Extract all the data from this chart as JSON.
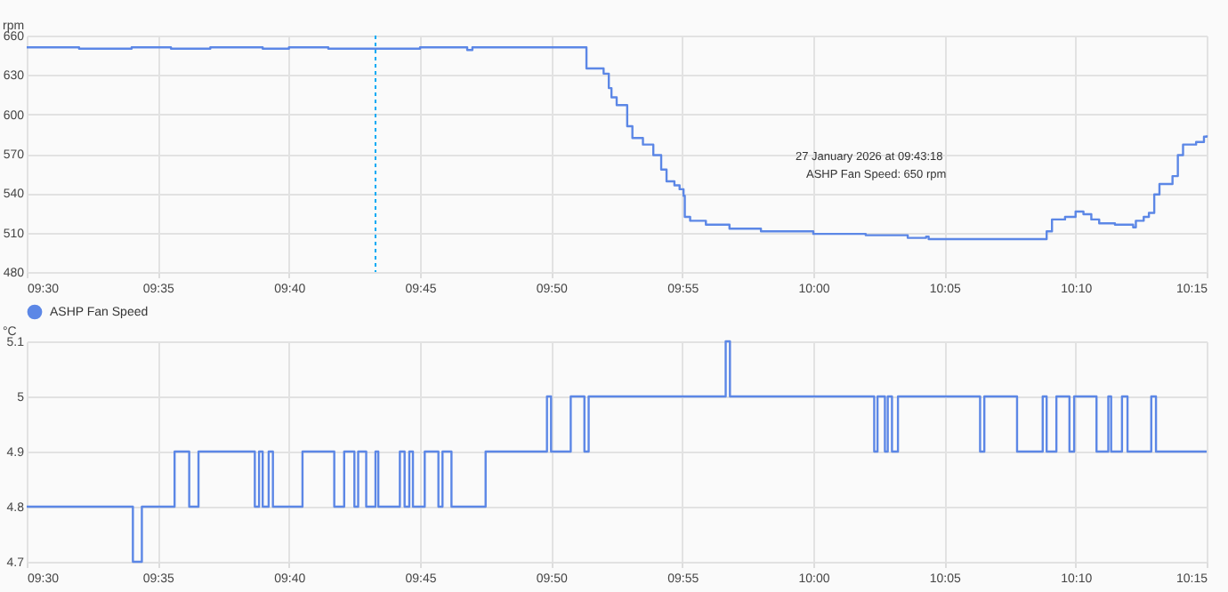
{
  "chart_data": [
    {
      "type": "step",
      "ylabel": "rpm",
      "x": [
        9.5,
        9.5333,
        9.5667,
        9.5917,
        9.6167,
        9.65,
        9.6667,
        9.6917,
        9.7167,
        9.75,
        9.78,
        9.7833,
        9.8517,
        9.8558,
        9.8667,
        9.87,
        9.8717,
        9.875,
        9.8817,
        9.885,
        9.8917,
        9.8983,
        9.9033,
        9.9067,
        9.9117,
        9.915,
        9.9175,
        9.9183,
        9.9217,
        9.9317,
        9.9467,
        9.9667,
        10.0,
        10.0333,
        10.06,
        10.0717,
        10.0733,
        10.1,
        10.1467,
        10.1483,
        10.1517,
        10.16,
        10.1667,
        10.1717,
        10.1767,
        10.1817,
        10.1917,
        10.2033,
        10.205,
        10.21,
        10.2133,
        10.2167,
        10.22,
        10.2283,
        10.2317,
        10.235,
        10.2433,
        10.2483,
        10.25
      ],
      "series": [
        {
          "name": "ASHP Fan Speed",
          "color": "#5c87e6",
          "values": [
            651,
            650,
            651,
            650,
            651,
            650,
            651,
            650,
            650,
            651,
            649,
            651,
            651,
            635,
            631,
            620,
            613,
            607,
            591,
            582,
            577,
            569,
            558,
            549,
            546,
            543,
            538,
            522,
            519,
            516,
            513,
            511,
            509,
            508,
            506,
            507,
            505,
            505,
            505,
            511,
            520,
            522,
            526,
            524,
            520,
            517,
            516,
            514,
            519,
            522,
            525,
            539,
            547,
            553,
            569,
            577,
            579,
            583,
            584
          ]
        }
      ],
      "xlim": [
        9.5,
        10.25
      ],
      "xticks": [
        {
          "value": 9.5,
          "label": "09:30"
        },
        {
          "value": 9.5833,
          "label": "09:35"
        },
        {
          "value": 9.6667,
          "label": "09:40"
        },
        {
          "value": 9.75,
          "label": "09:45"
        },
        {
          "value": 9.8333,
          "label": "09:50"
        },
        {
          "value": 9.9167,
          "label": "09:55"
        },
        {
          "value": 10,
          "label": "10:00"
        },
        {
          "value": 10.0833,
          "label": "10:05"
        },
        {
          "value": 10.1667,
          "label": "10:10"
        },
        {
          "value": 10.25,
          "label": "10:15"
        }
      ],
      "ylim": [
        480,
        660
      ],
      "yticks": [
        480,
        510,
        540,
        570,
        600,
        630,
        660
      ],
      "grid": true,
      "legend": "bottom",
      "ref_lines": [
        {
          "axis": "x",
          "value": 9.7217,
          "color": "#03a9f4",
          "line_style": "dotted"
        }
      ],
      "annotations": [
        "27 January 2026 at 09:43:18",
        "ASHP Fan Speed: 650 rpm"
      ]
    },
    {
      "type": "step",
      "ylabel": "°C",
      "x": [
        9.5,
        9.5675,
        9.5732,
        9.594,
        9.6033,
        9.6092,
        9.645,
        9.6477,
        9.65,
        9.6538,
        9.6565,
        9.6753,
        9.6955,
        9.7018,
        9.7083,
        9.7107,
        9.7158,
        9.7217,
        9.7235,
        9.7372,
        9.7402,
        9.7432,
        9.7455,
        9.753,
        9.7617,
        9.7643,
        9.77,
        9.7917,
        9.8307,
        9.8333,
        9.8458,
        9.8545,
        9.8572,
        9.9443,
        9.947,
        10.0387,
        10.0408,
        10.0455,
        10.0473,
        10.05,
        10.0538,
        10.106,
        10.1087,
        10.1295,
        10.1458,
        10.1483,
        10.1545,
        10.1628,
        10.1658,
        10.18,
        10.1875,
        10.1893,
        10.1962,
        10.1997,
        10.2148,
        10.2178,
        10.25
      ],
      "series": [
        {
          "color": "#5c87e6",
          "values": [
            4.8,
            4.7,
            4.8,
            4.9,
            4.8,
            4.9,
            4.8,
            4.9,
            4.8,
            4.9,
            4.8,
            4.9,
            4.8,
            4.9,
            4.8,
            4.9,
            4.8,
            4.9,
            4.8,
            4.9,
            4.8,
            4.9,
            4.8,
            4.9,
            4.8,
            4.9,
            4.8,
            4.9,
            5.0,
            4.9,
            5.0,
            4.9,
            5.0,
            5.1,
            5.0,
            4.9,
            5.0,
            4.9,
            5.0,
            4.9,
            5.0,
            4.9,
            5.0,
            4.9,
            5.0,
            4.9,
            5.0,
            4.9,
            5.0,
            4.9,
            5.0,
            4.9,
            5.0,
            4.9,
            5.0,
            4.9,
            4.9
          ]
        }
      ],
      "xlim": [
        9.5,
        10.25
      ],
      "xticks": [
        {
          "value": 9.5,
          "label": "09:30"
        },
        {
          "value": 9.5833,
          "label": "09:35"
        },
        {
          "value": 9.6667,
          "label": "09:40"
        },
        {
          "value": 9.75,
          "label": "09:45"
        },
        {
          "value": 9.8333,
          "label": "09:50"
        },
        {
          "value": 9.9167,
          "label": "09:55"
        },
        {
          "value": 10,
          "label": "10:00"
        },
        {
          "value": 10.0833,
          "label": "10:05"
        },
        {
          "value": 10.1667,
          "label": "10:10"
        },
        {
          "value": 10.25,
          "label": "10:15"
        }
      ],
      "ylim": [
        4.7,
        5.1
      ],
      "yticks": [
        4.7,
        4.8,
        4.9,
        5,
        5.1
      ],
      "grid": true
    }
  ]
}
